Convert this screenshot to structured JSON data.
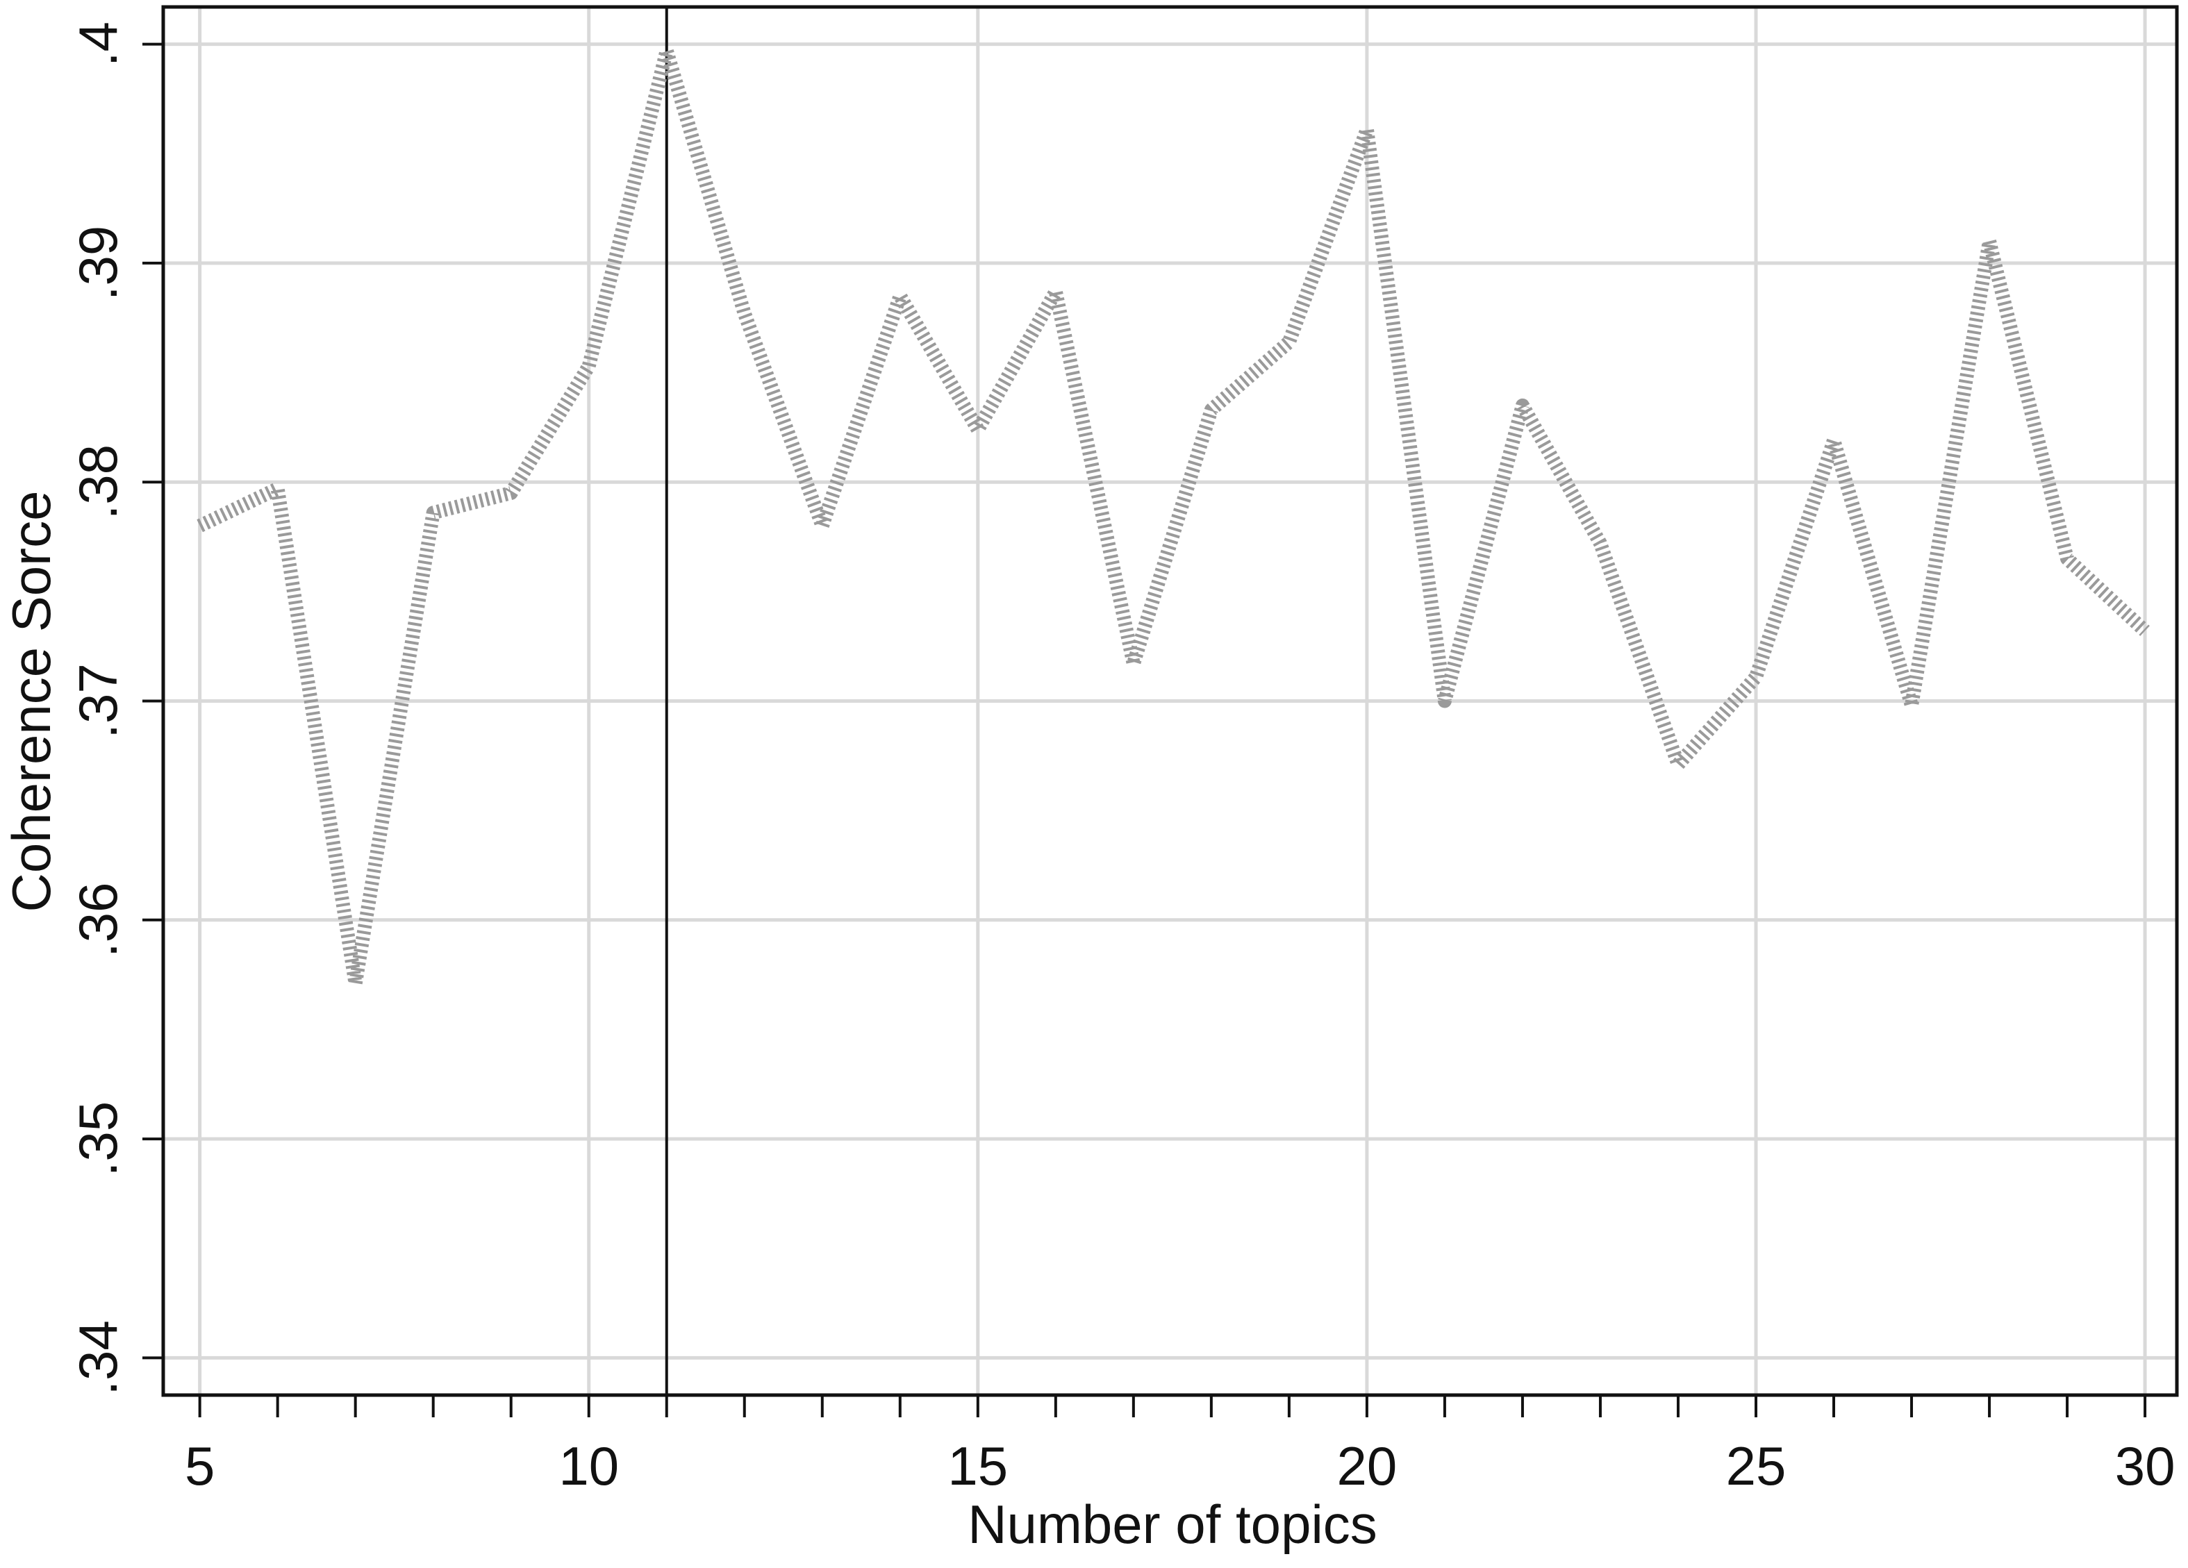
{
  "chart_data": {
    "type": "line",
    "x_label": "Number of topics",
    "y_label": "Coherence Sorce",
    "x": [
      5,
      6,
      7,
      8,
      9,
      10,
      11,
      12,
      13,
      14,
      15,
      16,
      17,
      18,
      19,
      20,
      21,
      22,
      23,
      24,
      25,
      26,
      27,
      28,
      29,
      30
    ],
    "values": [
      0.378,
      0.3797,
      0.3571,
      0.3786,
      0.3795,
      0.3853,
      0.3997,
      0.3877,
      0.378,
      0.3885,
      0.3824,
      0.3887,
      0.3717,
      0.3833,
      0.3864,
      0.3961,
      0.37,
      0.3835,
      0.3772,
      0.3671,
      0.3711,
      0.3819,
      0.3698,
      0.391,
      0.3765,
      0.3732
    ],
    "color": "#9a9a9a",
    "xlim": [
      4.53,
      30.41
    ],
    "ylim": [
      0.3383,
      0.4017
    ],
    "xticks": [
      5,
      10,
      15,
      20,
      25,
      30
    ],
    "xminorticks": [
      6,
      7,
      8,
      9,
      11,
      12,
      13,
      14,
      16,
      17,
      18,
      19,
      21,
      22,
      23,
      24,
      26,
      27,
      28,
      29
    ],
    "yticks": [
      {
        "value": 0.34,
        "label": ".34"
      },
      {
        "value": 0.35,
        "label": ".35"
      },
      {
        "value": 0.36,
        "label": ".36"
      },
      {
        "value": 0.37,
        "label": ".37"
      },
      {
        "value": 0.38,
        "label": ".38"
      },
      {
        "value": 0.39,
        "label": ".39"
      },
      {
        "value": 0.4,
        "label": ".4"
      }
    ],
    "vline": 11,
    "grid": true
  }
}
